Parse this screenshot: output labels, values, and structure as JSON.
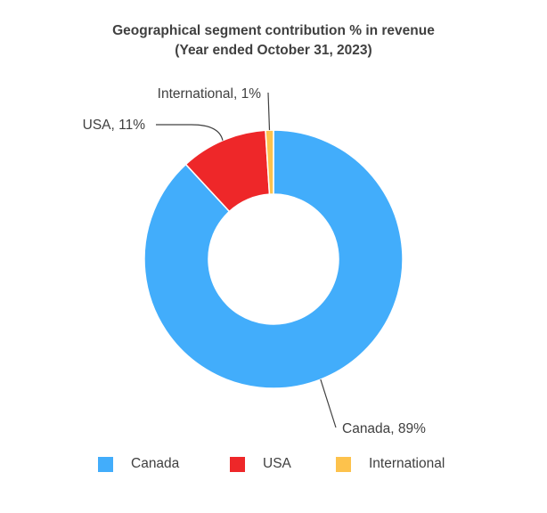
{
  "chart_data": {
    "type": "pie",
    "variant": "donut",
    "title": "Geographical segment contribution % in revenue",
    "subtitle": "(Year ended October 31, 2023)",
    "categories": [
      "Canada",
      "USA",
      "International"
    ],
    "values": [
      89,
      11,
      1
    ],
    "data_labels": [
      "Canada, 89%",
      "USA, 11%",
      "International, 1%"
    ],
    "colors": [
      "#42ADFB",
      "#EE2729",
      "#FDC24C"
    ],
    "legend_position": "bottom"
  }
}
